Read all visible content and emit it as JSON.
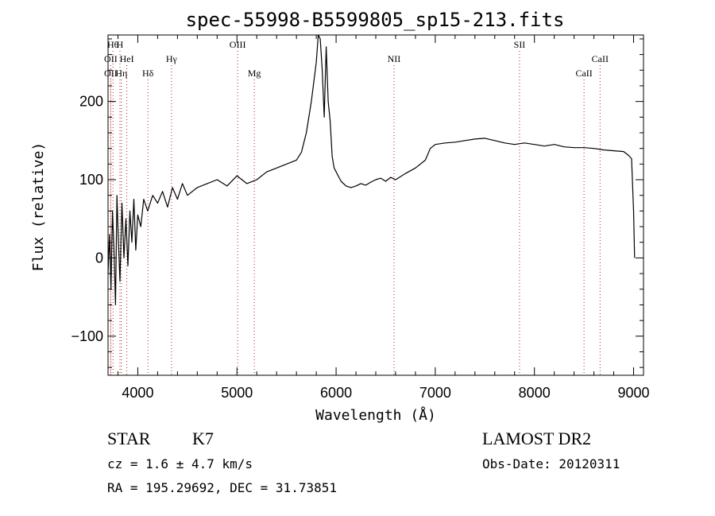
{
  "chart_data": {
    "type": "line",
    "title": "spec-55998-B5599805_sp15-213.fits",
    "xlabel": "Wavelength (Å)",
    "ylabel": "Flux (relative)",
    "xlim": [
      3700,
      9100
    ],
    "ylim": [
      -150,
      285
    ],
    "xticks": [
      4000,
      5000,
      6000,
      7000,
      8000,
      9000
    ],
    "yticks": [
      -100,
      0,
      100,
      200
    ],
    "ytick_labels": [
      "−100",
      "0",
      "100",
      "200"
    ],
    "grid": false,
    "series": [
      {
        "x": [
          3700,
          3715,
          3730,
          3745,
          3760,
          3775,
          3790,
          3805,
          3820,
          3840,
          3860,
          3880,
          3900,
          3920,
          3940,
          3960,
          3980,
          4000,
          4030,
          4060,
          4100,
          4150,
          4200,
          4250,
          4300,
          4350,
          4400,
          4450,
          4500,
          4600,
          4700,
          4800,
          4900,
          5000,
          5100,
          5200,
          5300,
          5400,
          5500,
          5600,
          5650,
          5700,
          5750,
          5800,
          5820,
          5840,
          5860,
          5880,
          5900,
          5920,
          5940,
          5960,
          5980,
          6000,
          6050,
          6100,
          6150,
          6200,
          6250,
          6300,
          6350,
          6400,
          6450,
          6500,
          6550,
          6600,
          6700,
          6800,
          6900,
          6950,
          7000,
          7100,
          7200,
          7300,
          7400,
          7500,
          7600,
          7700,
          7800,
          7900,
          8000,
          8100,
          8200,
          8300,
          8400,
          8500,
          8600,
          8700,
          8800,
          8900,
          8950,
          8980,
          9000,
          9010
        ],
        "y": [
          -20,
          30,
          -40,
          60,
          10,
          -60,
          80,
          20,
          -30,
          70,
          0,
          50,
          -10,
          60,
          20,
          75,
          10,
          55,
          40,
          75,
          60,
          80,
          70,
          85,
          65,
          90,
          75,
          95,
          80,
          90,
          95,
          100,
          92,
          105,
          95,
          100,
          110,
          115,
          120,
          125,
          135,
          160,
          200,
          250,
          285,
          280,
          240,
          180,
          270,
          200,
          175,
          130,
          115,
          110,
          98,
          92,
          90,
          92,
          95,
          93,
          97,
          100,
          102,
          98,
          103,
          100,
          108,
          115,
          125,
          140,
          145,
          147,
          148,
          150,
          152,
          153,
          150,
          147,
          145,
          147,
          145,
          143,
          145,
          142,
          141,
          141,
          140,
          138,
          137,
          136,
          131,
          127,
          60,
          0
        ]
      }
    ],
    "spectral_lines": [
      {
        "x": 3750,
        "label": "Hθ",
        "row": "top"
      },
      {
        "x": 3820,
        "label": "H",
        "row": "top"
      },
      {
        "x": 3727,
        "label": "OII",
        "row": "mid"
      },
      {
        "x": 3889,
        "label": "HeI",
        "row": "mid"
      },
      {
        "x": 3727,
        "label": "OII",
        "row": "low"
      },
      {
        "x": 3835,
        "label": "Hη",
        "row": "low"
      },
      {
        "x": 4102,
        "label": "Hδ",
        "row": "low"
      },
      {
        "x": 4340,
        "label": "Hγ",
        "row": "mid"
      },
      {
        "x": 5007,
        "label": "OIII",
        "row": "top"
      },
      {
        "x": 5175,
        "label": "Mg",
        "row": "low"
      },
      {
        "x": 6584,
        "label": "NII",
        "row": "mid"
      },
      {
        "x": 7850,
        "label": "SII",
        "row": "top"
      },
      {
        "x": 8500,
        "label": "CaII",
        "row": "low"
      },
      {
        "x": 8662,
        "label": "CaII",
        "row": "mid"
      }
    ]
  },
  "info": {
    "class": "STAR",
    "subclass": "K7",
    "cz": "cz = 1.6 ± 4.7 km/s",
    "radec": "RA = 195.29692, DEC =  31.73851",
    "survey": "LAMOST DR2",
    "obsdate": "Obs-Date: 20120311"
  }
}
